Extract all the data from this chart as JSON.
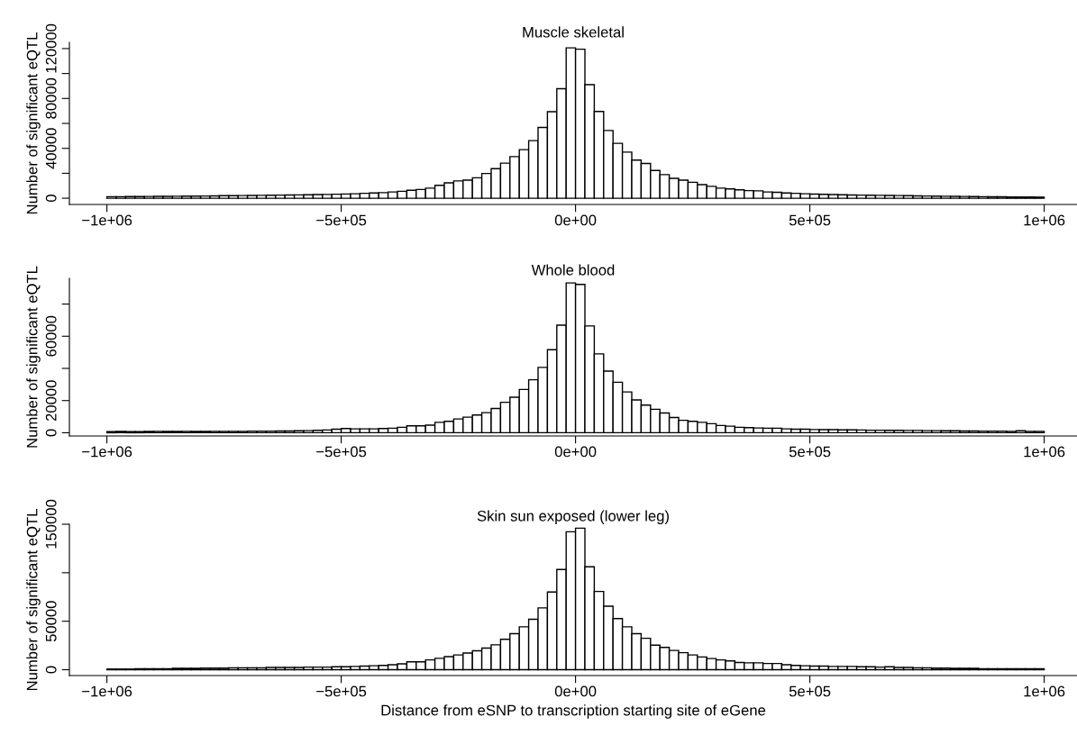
{
  "chart_data": [
    {
      "type": "histogram",
      "title": "Muscle skeletal",
      "ylabel": "Number of significant eQTL",
      "color": "#ffffff",
      "bins": [
        -1000000,
        -980000,
        -960000,
        -940000,
        -920000,
        -900000,
        -880000,
        -860000,
        -840000,
        -820000,
        -800000,
        -780000,
        -760000,
        -740000,
        -720000,
        -700000,
        -680000,
        -660000,
        -640000,
        -620000,
        -600000,
        -580000,
        -560000,
        -540000,
        -520000,
        -500000,
        -480000,
        -460000,
        -440000,
        -420000,
        -400000,
        -380000,
        -360000,
        -340000,
        -320000,
        -300000,
        -280000,
        -260000,
        -240000,
        -220000,
        -200000,
        -180000,
        -160000,
        -140000,
        -120000,
        -100000,
        -80000,
        -60000,
        -40000,
        -20000,
        0,
        20000,
        40000,
        60000,
        80000,
        100000,
        120000,
        140000,
        160000,
        180000,
        200000,
        220000,
        240000,
        260000,
        280000,
        300000,
        320000,
        340000,
        360000,
        380000,
        400000,
        420000,
        440000,
        460000,
        480000,
        500000,
        520000,
        540000,
        560000,
        580000,
        600000,
        620000,
        640000,
        660000,
        680000,
        700000,
        720000,
        740000,
        760000,
        780000,
        800000,
        820000,
        840000,
        860000,
        880000,
        900000,
        920000,
        940000,
        960000,
        980000,
        1000000
      ],
      "values": [
        1200,
        1200,
        1300,
        1300,
        1400,
        1500,
        1500,
        1600,
        1700,
        1700,
        1800,
        1900,
        2000,
        2000,
        2100,
        2200,
        2300,
        2400,
        2500,
        2600,
        2700,
        2800,
        2900,
        3000,
        3200,
        3400,
        3600,
        3900,
        4200,
        4500,
        5000,
        5600,
        6400,
        7000,
        8100,
        10300,
        12300,
        13900,
        14500,
        16400,
        19800,
        23700,
        28100,
        33400,
        39000,
        46200,
        56800,
        69400,
        87800,
        120600,
        119500,
        91100,
        69600,
        54300,
        44000,
        37000,
        30600,
        27900,
        22300,
        18900,
        15900,
        14500,
        12800,
        10900,
        9500,
        8100,
        7500,
        6700,
        6100,
        5900,
        5000,
        4700,
        4200,
        3900,
        3600,
        3300,
        3100,
        2900,
        2800,
        2600,
        2500,
        2400,
        2300,
        2200,
        2100,
        2000,
        1900,
        1800,
        1700,
        1600,
        1500,
        1400,
        1300,
        1200,
        1100,
        1100,
        1000,
        1000,
        1000,
        900
      ],
      "xlim": [
        -1080000,
        1070000
      ],
      "xticks": [
        {
          "value": -1000000,
          "label": "−1e+06"
        },
        {
          "value": -500000,
          "label": "−5e+05"
        },
        {
          "value": 0,
          "label": "0e+00"
        },
        {
          "value": 500000,
          "label": "5e+05"
        },
        {
          "value": 1000000,
          "label": "1e+06"
        }
      ],
      "ylim": [
        -5000,
        125000
      ],
      "yticks": [
        0,
        {
          "value": 20000,
          "label": null
        },
        40000,
        {
          "value": 60000,
          "label": null
        },
        80000,
        {
          "value": 100000,
          "label": null
        },
        120000
      ],
      "grid": false
    },
    {
      "type": "histogram",
      "title": "Whole blood",
      "ylabel": "Number of significant eQTL",
      "color": "#ffffff",
      "bins": [
        -1000000,
        -980000,
        -960000,
        -940000,
        -920000,
        -900000,
        -880000,
        -860000,
        -840000,
        -820000,
        -800000,
        -780000,
        -760000,
        -740000,
        -720000,
        -700000,
        -680000,
        -660000,
        -640000,
        -620000,
        -600000,
        -580000,
        -560000,
        -540000,
        -520000,
        -500000,
        -480000,
        -460000,
        -440000,
        -420000,
        -400000,
        -380000,
        -360000,
        -340000,
        -320000,
        -300000,
        -280000,
        -260000,
        -240000,
        -220000,
        -200000,
        -180000,
        -160000,
        -140000,
        -120000,
        -100000,
        -80000,
        -60000,
        -40000,
        -20000,
        0,
        20000,
        40000,
        60000,
        80000,
        100000,
        120000,
        140000,
        160000,
        180000,
        200000,
        220000,
        240000,
        260000,
        280000,
        300000,
        320000,
        340000,
        360000,
        380000,
        400000,
        420000,
        440000,
        460000,
        480000,
        500000,
        520000,
        540000,
        560000,
        580000,
        600000,
        620000,
        640000,
        660000,
        680000,
        700000,
        720000,
        740000,
        760000,
        780000,
        800000,
        820000,
        840000,
        860000,
        880000,
        900000,
        920000,
        940000,
        960000,
        980000,
        1000000
      ],
      "values": [
        700,
        800,
        700,
        700,
        800,
        900,
        800,
        800,
        900,
        800,
        800,
        900,
        900,
        900,
        900,
        1000,
        1000,
        1000,
        1100,
        1100,
        1200,
        1300,
        1500,
        1700,
        2200,
        2600,
        2400,
        2400,
        2400,
        2600,
        2800,
        3400,
        4300,
        4300,
        4700,
        6500,
        7100,
        8600,
        9700,
        11000,
        12500,
        15100,
        18900,
        22100,
        26900,
        32900,
        40600,
        51600,
        66900,
        93100,
        92200,
        66400,
        49000,
        38300,
        31400,
        25400,
        20400,
        17200,
        14600,
        12300,
        9500,
        7700,
        7100,
        6500,
        5600,
        4500,
        4100,
        3400,
        3200,
        3000,
        2800,
        2800,
        2400,
        2200,
        2200,
        2000,
        1900,
        1900,
        1800,
        1800,
        1700,
        1600,
        1600,
        1500,
        1500,
        1400,
        1400,
        1300,
        1300,
        1200,
        1200,
        1100,
        1100,
        1000,
        1000,
        1000,
        900,
        1200,
        900,
        900
      ],
      "xlim": [
        -1080000,
        1070000
      ],
      "xticks": [
        {
          "value": -1000000,
          "label": "−1e+06"
        },
        {
          "value": -500000,
          "label": "−5e+05"
        },
        {
          "value": 0,
          "label": "0e+00"
        },
        {
          "value": 500000,
          "label": "5e+05"
        },
        {
          "value": 1000000,
          "label": "1e+06"
        }
      ],
      "ylim": [
        -2000,
        96000
      ],
      "yticks": [
        0,
        20000,
        {
          "value": 40000,
          "label": null
        },
        60000,
        {
          "value": 80000,
          "label": null
        }
      ],
      "grid": false
    },
    {
      "type": "histogram",
      "title": "Skin sun exposed (lower leg)",
      "ylabel": "Number of significant eQTL",
      "xlabel": "Distance from eSNP to transcription starting site of eGene",
      "color": "#ffffff",
      "bins": [
        -1000000,
        -980000,
        -960000,
        -940000,
        -920000,
        -900000,
        -880000,
        -860000,
        -840000,
        -820000,
        -800000,
        -780000,
        -760000,
        -740000,
        -720000,
        -700000,
        -680000,
        -660000,
        -640000,
        -620000,
        -600000,
        -580000,
        -560000,
        -540000,
        -520000,
        -500000,
        -480000,
        -460000,
        -440000,
        -420000,
        -400000,
        -380000,
        -360000,
        -340000,
        -320000,
        -300000,
        -280000,
        -260000,
        -240000,
        -220000,
        -200000,
        -180000,
        -160000,
        -140000,
        -120000,
        -100000,
        -80000,
        -60000,
        -40000,
        -20000,
        0,
        20000,
        40000,
        60000,
        80000,
        100000,
        120000,
        140000,
        160000,
        180000,
        200000,
        220000,
        240000,
        260000,
        280000,
        300000,
        320000,
        340000,
        360000,
        380000,
        400000,
        420000,
        440000,
        460000,
        480000,
        500000,
        520000,
        540000,
        560000,
        580000,
        600000,
        620000,
        640000,
        660000,
        680000,
        700000,
        720000,
        740000,
        760000,
        780000,
        800000,
        820000,
        840000,
        860000,
        880000,
        900000,
        920000,
        940000,
        960000,
        980000,
        1000000
      ],
      "values": [
        700,
        700,
        700,
        1000,
        1000,
        1000,
        1000,
        1400,
        1400,
        1400,
        1700,
        1700,
        1700,
        2000,
        2000,
        2000,
        2000,
        2400,
        2400,
        2400,
        2400,
        2700,
        2700,
        2700,
        3000,
        3000,
        3400,
        3700,
        4100,
        4400,
        5100,
        6100,
        8100,
        8100,
        10100,
        11800,
        13500,
        15200,
        17200,
        19600,
        22300,
        25700,
        31400,
        37200,
        44300,
        52000,
        63800,
        80100,
        103400,
        142200,
        145900,
        106100,
        80700,
        65500,
        52700,
        44300,
        37200,
        32400,
        25300,
        23000,
        19900,
        17600,
        15200,
        13200,
        11500,
        10100,
        9100,
        7400,
        7100,
        7100,
        6400,
        6400,
        5100,
        4400,
        4100,
        3700,
        3700,
        3400,
        3400,
        3400,
        3000,
        3000,
        2700,
        3000,
        2400,
        2400,
        2000,
        2000,
        1700,
        1700,
        1400,
        1400,
        1400,
        1000,
        1000,
        1000,
        1000,
        1000,
        1000,
        1000
      ],
      "xlim": [
        -1080000,
        1070000
      ],
      "xticks": [
        {
          "value": -1000000,
          "label": "−1e+06"
        },
        {
          "value": -500000,
          "label": "−5e+05"
        },
        {
          "value": 0,
          "label": "0e+00"
        },
        {
          "value": 500000,
          "label": "5e+05"
        },
        {
          "value": 1000000,
          "label": "1e+06"
        }
      ],
      "ylim": [
        -6000,
        150000
      ],
      "yticks": [
        0,
        50000,
        {
          "value": 100000,
          "label": null
        },
        150000
      ],
      "grid": false
    }
  ]
}
